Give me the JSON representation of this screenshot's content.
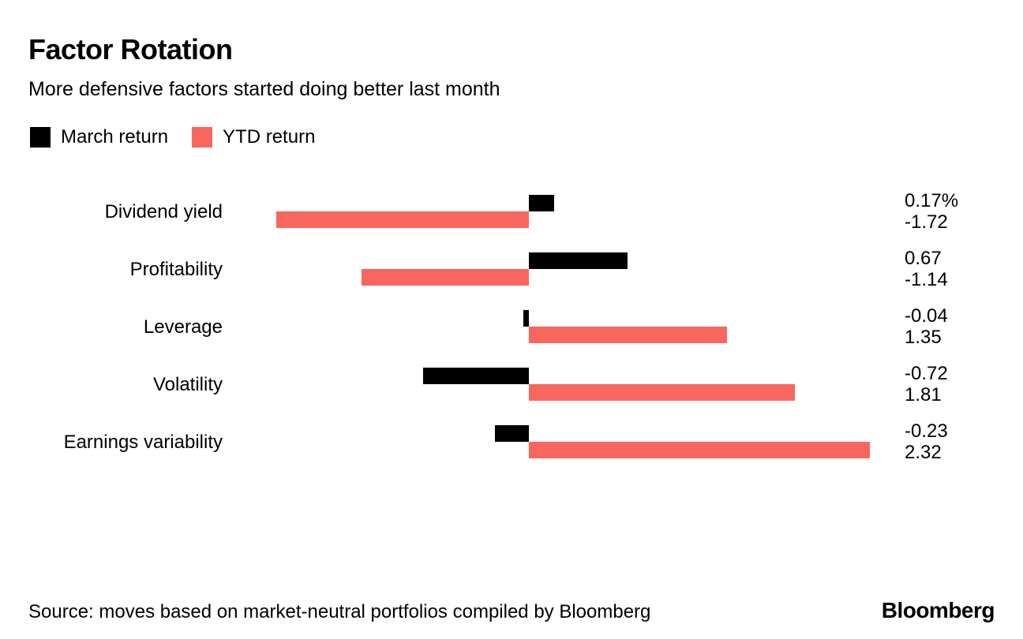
{
  "header": {
    "title": "Factor Rotation",
    "subtitle": "More defensive factors started doing better last month"
  },
  "footer": {
    "source": "Source: moves based on market-neutral portfolios compiled by Bloomberg",
    "logo": "Bloomberg"
  },
  "colors": {
    "march_return": "#000000",
    "ytd_return": "#F9665E"
  },
  "chart_data": {
    "type": "bar",
    "orientation": "horizontal",
    "title": "Factor Rotation",
    "subtitle": "More defensive factors started doing better last month",
    "legend_position": "top-left",
    "grid": false,
    "xlim": [
      -2.0,
      2.6
    ],
    "categories": [
      "Dividend yield",
      "Profitability",
      "Leverage",
      "Volatility",
      "Earnings variability"
    ],
    "series": [
      {
        "name": "March return",
        "color": "#000000",
        "values": [
          0.17,
          0.67,
          -0.04,
          -0.72,
          -0.23
        ]
      },
      {
        "name": "YTD return",
        "color": "#F9665E",
        "values": [
          -1.72,
          -1.14,
          1.35,
          1.81,
          2.32
        ]
      }
    ],
    "value_labels": [
      [
        "0.17%",
        "-1.72"
      ],
      [
        "0.67",
        "-1.14"
      ],
      [
        "-0.04",
        "1.35"
      ],
      [
        "-0.72",
        "1.81"
      ],
      [
        "-0.23",
        "2.32"
      ]
    ]
  }
}
